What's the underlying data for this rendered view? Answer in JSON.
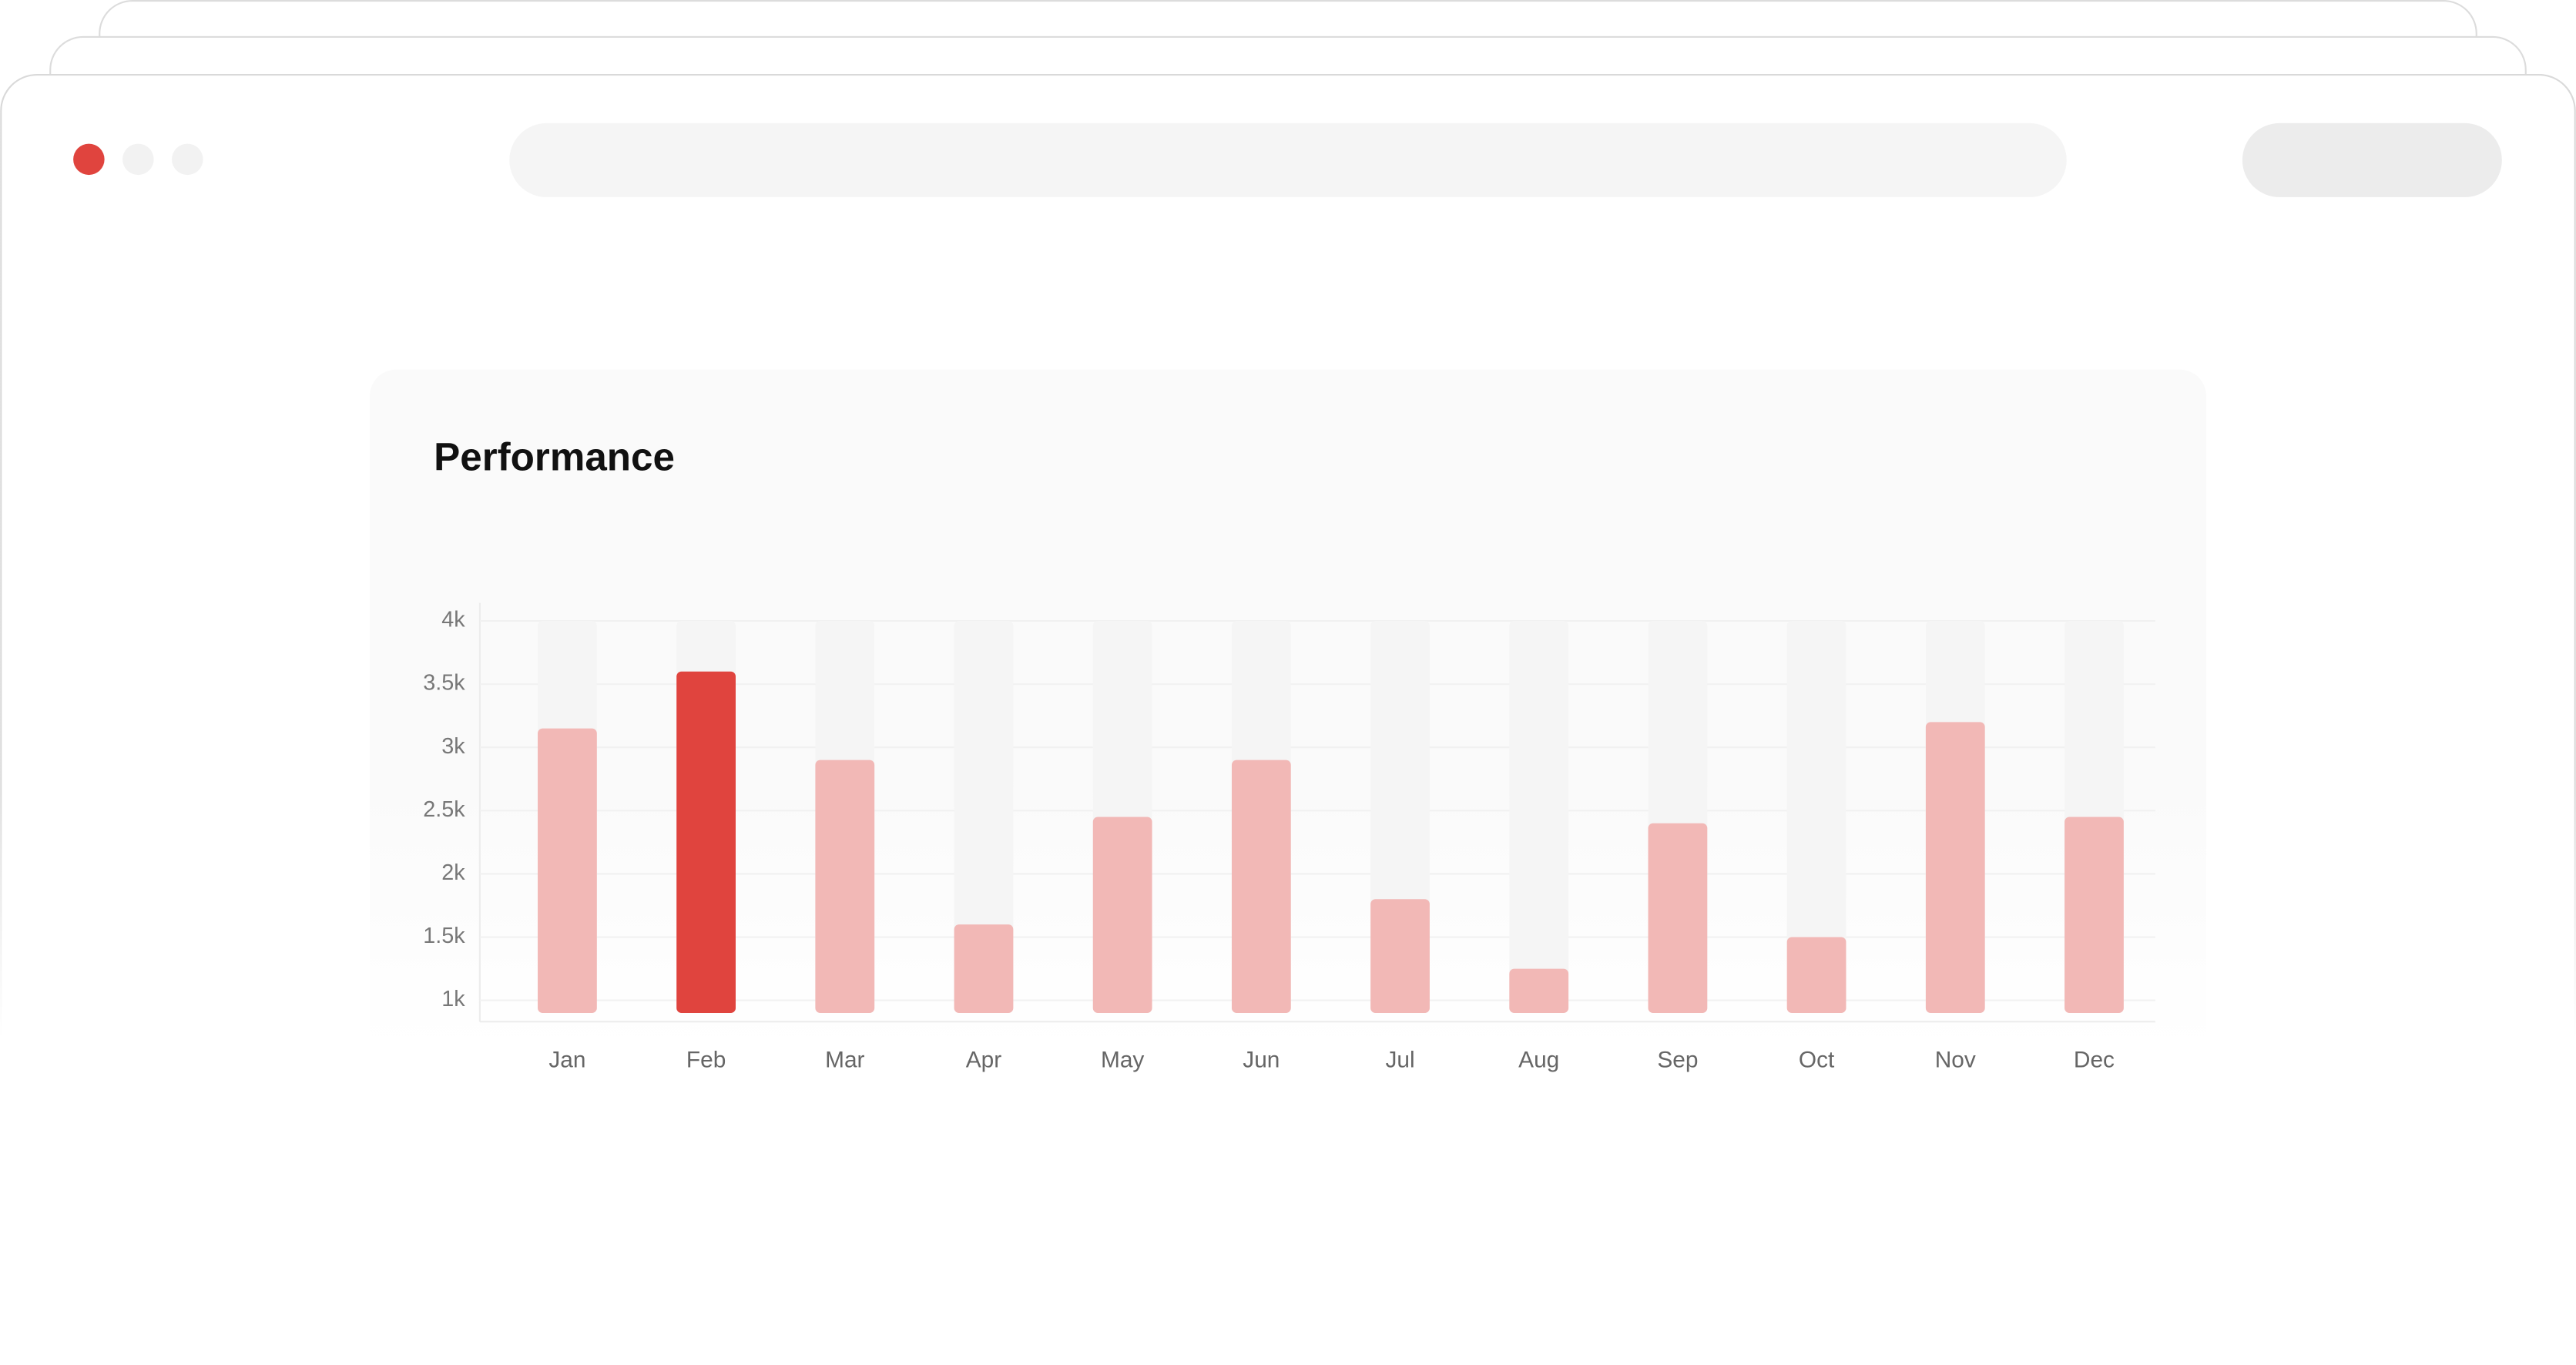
{
  "chart_data": {
    "type": "bar",
    "title": "Performance",
    "categories": [
      "Jan",
      "Feb",
      "Mar",
      "Apr",
      "May",
      "Jun",
      "Jul",
      "Aug",
      "Sep",
      "Oct",
      "Nov",
      "Dec"
    ],
    "values": [
      3150,
      3600,
      2900,
      1600,
      2450,
      2900,
      1800,
      1250,
      2400,
      1500,
      3200,
      2450
    ],
    "colors": [
      "#f2b8b6",
      "#e0443e",
      "#f2b8b6",
      "#f2b8b6",
      "#f2b8b6",
      "#f2b8b6",
      "#f2b8b6",
      "#f2b8b6",
      "#f2b8b6",
      "#f2b8b6",
      "#f2b8b6",
      "#f2b8b6"
    ],
    "ylim": [
      900,
      4000
    ],
    "yticks": [
      {
        "value": 1000,
        "label": "1k"
      },
      {
        "value": 1500,
        "label": "1.5k"
      },
      {
        "value": 2000,
        "label": "2k"
      },
      {
        "value": 2500,
        "label": "2.5k"
      },
      {
        "value": 3000,
        "label": "3k"
      },
      {
        "value": 3500,
        "label": "3.5k"
      },
      {
        "value": 4000,
        "label": "4k"
      }
    ],
    "grid": true
  }
}
